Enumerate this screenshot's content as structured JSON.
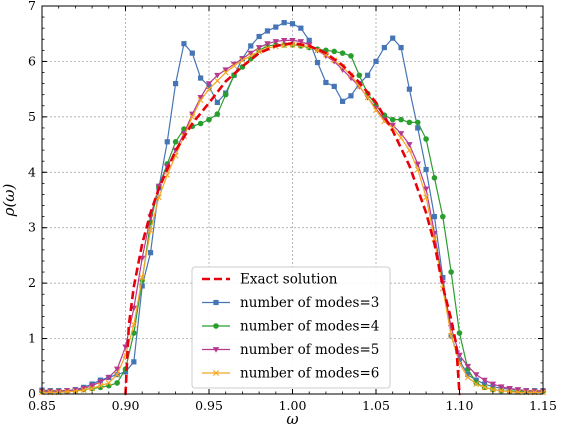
{
  "chart_data": {
    "type": "line",
    "xlabel": "ω",
    "ylabel": "ρ(ω)",
    "xlim": [
      0.85,
      1.15
    ],
    "ylim": [
      0,
      7
    ],
    "xticks": [
      "0.85",
      "0.90",
      "0.95",
      "1.00",
      "1.05",
      "1.10",
      "1.15"
    ],
    "yticks": [
      "0",
      "1",
      "2",
      "3",
      "4",
      "5",
      "6",
      "7"
    ],
    "grid": true,
    "legend_position": "bottom-center",
    "series": [
      {
        "name": "Exact solution",
        "color": "#e8000b",
        "style": "dashed",
        "marker": "none",
        "x": [
          0.8995,
          0.9,
          0.902,
          0.905,
          0.91,
          0.915,
          0.92,
          0.93,
          0.94,
          0.95,
          0.96,
          0.97,
          0.98,
          0.99,
          1.0,
          1.01,
          1.02,
          1.03,
          1.04,
          1.05,
          1.06,
          1.07,
          1.08,
          1.085,
          1.09,
          1.095,
          1.098,
          1.1,
          1.1005
        ],
        "y": [
          0,
          0,
          1.24,
          1.94,
          2.71,
          3.27,
          3.71,
          4.39,
          4.88,
          5.25,
          5.64,
          5.91,
          6.15,
          6.28,
          6.33,
          6.28,
          6.15,
          5.93,
          5.62,
          5.26,
          4.75,
          4.12,
          3.27,
          2.71,
          1.94,
          1.35,
          0.9,
          0,
          0
        ]
      },
      {
        "name": "number of modes=3",
        "color": "#4575b4",
        "style": "solid",
        "marker": "square",
        "x": [
          0.85,
          0.855,
          0.86,
          0.865,
          0.87,
          0.875,
          0.88,
          0.885,
          0.89,
          0.895,
          0.9,
          0.905,
          0.91,
          0.915,
          0.92,
          0.925,
          0.93,
          0.935,
          0.94,
          0.945,
          0.95,
          0.955,
          0.96,
          0.965,
          0.97,
          0.975,
          0.98,
          0.985,
          0.99,
          0.995,
          1.0,
          1.005,
          1.01,
          1.015,
          1.02,
          1.025,
          1.03,
          1.035,
          1.04,
          1.045,
          1.05,
          1.055,
          1.06,
          1.065,
          1.07,
          1.075,
          1.08,
          1.085,
          1.09,
          1.095,
          1.1,
          1.105,
          1.11,
          1.115,
          1.12,
          1.125,
          1.13,
          1.135,
          1.14,
          1.145,
          1.15
        ],
        "y": [
          0.07,
          0.06,
          0.06,
          0.06,
          0.08,
          0.12,
          0.18,
          0.25,
          0.3,
          0.35,
          0.4,
          0.58,
          1.95,
          2.55,
          3.72,
          4.55,
          5.6,
          6.32,
          6.15,
          5.7,
          5.55,
          5.26,
          5.43,
          5.75,
          6.05,
          6.28,
          6.45,
          6.55,
          6.62,
          6.7,
          6.68,
          6.6,
          6.38,
          5.98,
          5.62,
          5.55,
          5.28,
          5.38,
          5.6,
          5.75,
          6.0,
          6.25,
          6.42,
          6.25,
          5.5,
          4.8,
          4.05,
          3.2,
          2.1,
          1.05,
          0.6,
          0.35,
          0.25,
          0.18,
          0.13,
          0.1,
          0.09,
          0.07,
          0.06,
          0.06,
          0.06
        ]
      },
      {
        "name": "number of modes=4",
        "color": "#2a9d2f",
        "style": "solid",
        "marker": "circle",
        "x": [
          0.85,
          0.855,
          0.86,
          0.865,
          0.87,
          0.875,
          0.88,
          0.885,
          0.89,
          0.895,
          0.9,
          0.905,
          0.91,
          0.915,
          0.92,
          0.925,
          0.93,
          0.935,
          0.94,
          0.945,
          0.95,
          0.955,
          0.96,
          0.965,
          0.97,
          0.975,
          0.98,
          0.985,
          0.99,
          0.995,
          1.0,
          1.005,
          1.01,
          1.015,
          1.02,
          1.025,
          1.03,
          1.035,
          1.04,
          1.045,
          1.05,
          1.055,
          1.06,
          1.065,
          1.07,
          1.075,
          1.08,
          1.085,
          1.09,
          1.095,
          1.1,
          1.105,
          1.11,
          1.115,
          1.12,
          1.125,
          1.13,
          1.135,
          1.14,
          1.145,
          1.15
        ],
        "y": [
          0.05,
          0.05,
          0.05,
          0.05,
          0.06,
          0.08,
          0.1,
          0.12,
          0.15,
          0.2,
          0.45,
          1.1,
          2.05,
          3.1,
          3.75,
          4.15,
          4.55,
          4.78,
          4.83,
          4.88,
          4.95,
          5.05,
          5.4,
          5.75,
          5.9,
          6.05,
          6.2,
          6.28,
          6.3,
          6.3,
          6.3,
          6.28,
          6.25,
          6.22,
          6.2,
          6.18,
          6.15,
          6.1,
          5.75,
          5.42,
          5.2,
          5.03,
          4.95,
          4.95,
          4.9,
          4.9,
          4.6,
          3.9,
          3.2,
          2.2,
          1.1,
          0.45,
          0.2,
          0.12,
          0.08,
          0.06,
          0.05,
          0.05,
          0.05,
          0.05,
          0.05
        ]
      },
      {
        "name": "number of modes=5",
        "color": "#b5398f",
        "style": "solid",
        "marker": "triangle-down",
        "x": [
          0.85,
          0.855,
          0.86,
          0.865,
          0.87,
          0.875,
          0.88,
          0.885,
          0.89,
          0.895,
          0.9,
          0.905,
          0.91,
          0.915,
          0.92,
          0.925,
          0.93,
          0.935,
          0.94,
          0.945,
          0.95,
          0.955,
          0.96,
          0.965,
          0.97,
          0.975,
          0.98,
          0.985,
          0.99,
          0.995,
          1.0,
          1.005,
          1.01,
          1.015,
          1.02,
          1.025,
          1.03,
          1.035,
          1.04,
          1.045,
          1.05,
          1.055,
          1.06,
          1.065,
          1.07,
          1.075,
          1.08,
          1.085,
          1.09,
          1.095,
          1.1,
          1.105,
          1.11,
          1.115,
          1.12,
          1.125,
          1.13,
          1.135,
          1.14,
          1.145,
          1.15
        ],
        "y": [
          0.05,
          0.05,
          0.05,
          0.06,
          0.07,
          0.1,
          0.15,
          0.22,
          0.3,
          0.45,
          0.85,
          1.55,
          2.45,
          3.2,
          3.75,
          4.1,
          4.4,
          4.7,
          5.05,
          5.35,
          5.6,
          5.75,
          5.85,
          5.95,
          6.05,
          6.15,
          6.25,
          6.32,
          6.36,
          6.38,
          6.38,
          6.36,
          6.3,
          6.2,
          6.1,
          6.0,
          5.85,
          5.7,
          5.55,
          5.35,
          5.15,
          4.95,
          4.85,
          4.7,
          4.5,
          4.15,
          3.7,
          2.9,
          2.0,
          1.2,
          0.7,
          0.5,
          0.35,
          0.25,
          0.18,
          0.13,
          0.1,
          0.08,
          0.06,
          0.05,
          0.05
        ]
      },
      {
        "name": "number of modes=6",
        "color": "#f5a623",
        "style": "solid",
        "marker": "x",
        "x": [
          0.85,
          0.855,
          0.86,
          0.865,
          0.87,
          0.875,
          0.88,
          0.885,
          0.89,
          0.895,
          0.9,
          0.905,
          0.91,
          0.915,
          0.92,
          0.925,
          0.93,
          0.935,
          0.94,
          0.945,
          0.95,
          0.955,
          0.96,
          0.965,
          0.97,
          0.975,
          0.98,
          0.985,
          0.99,
          0.995,
          1.0,
          1.005,
          1.01,
          1.015,
          1.02,
          1.025,
          1.03,
          1.035,
          1.04,
          1.045,
          1.05,
          1.055,
          1.06,
          1.065,
          1.07,
          1.075,
          1.08,
          1.085,
          1.09,
          1.095,
          1.1,
          1.105,
          1.11,
          1.115,
          1.12,
          1.125,
          1.13,
          1.135,
          1.14,
          1.145,
          1.15
        ],
        "y": [
          0.03,
          0.03,
          0.03,
          0.04,
          0.05,
          0.07,
          0.1,
          0.15,
          0.2,
          0.35,
          0.7,
          1.25,
          2.1,
          2.95,
          3.55,
          3.95,
          4.3,
          4.65,
          5.0,
          5.3,
          5.5,
          5.65,
          5.8,
          5.92,
          6.02,
          6.1,
          6.18,
          6.24,
          6.27,
          6.29,
          6.3,
          6.29,
          6.26,
          6.2,
          6.12,
          6.02,
          5.9,
          5.75,
          5.55,
          5.35,
          5.12,
          4.92,
          4.8,
          4.62,
          4.4,
          4.05,
          3.55,
          2.8,
          1.9,
          1.05,
          0.55,
          0.3,
          0.18,
          0.12,
          0.08,
          0.06,
          0.04,
          0.03,
          0.03,
          0.03,
          0.03
        ]
      }
    ]
  }
}
